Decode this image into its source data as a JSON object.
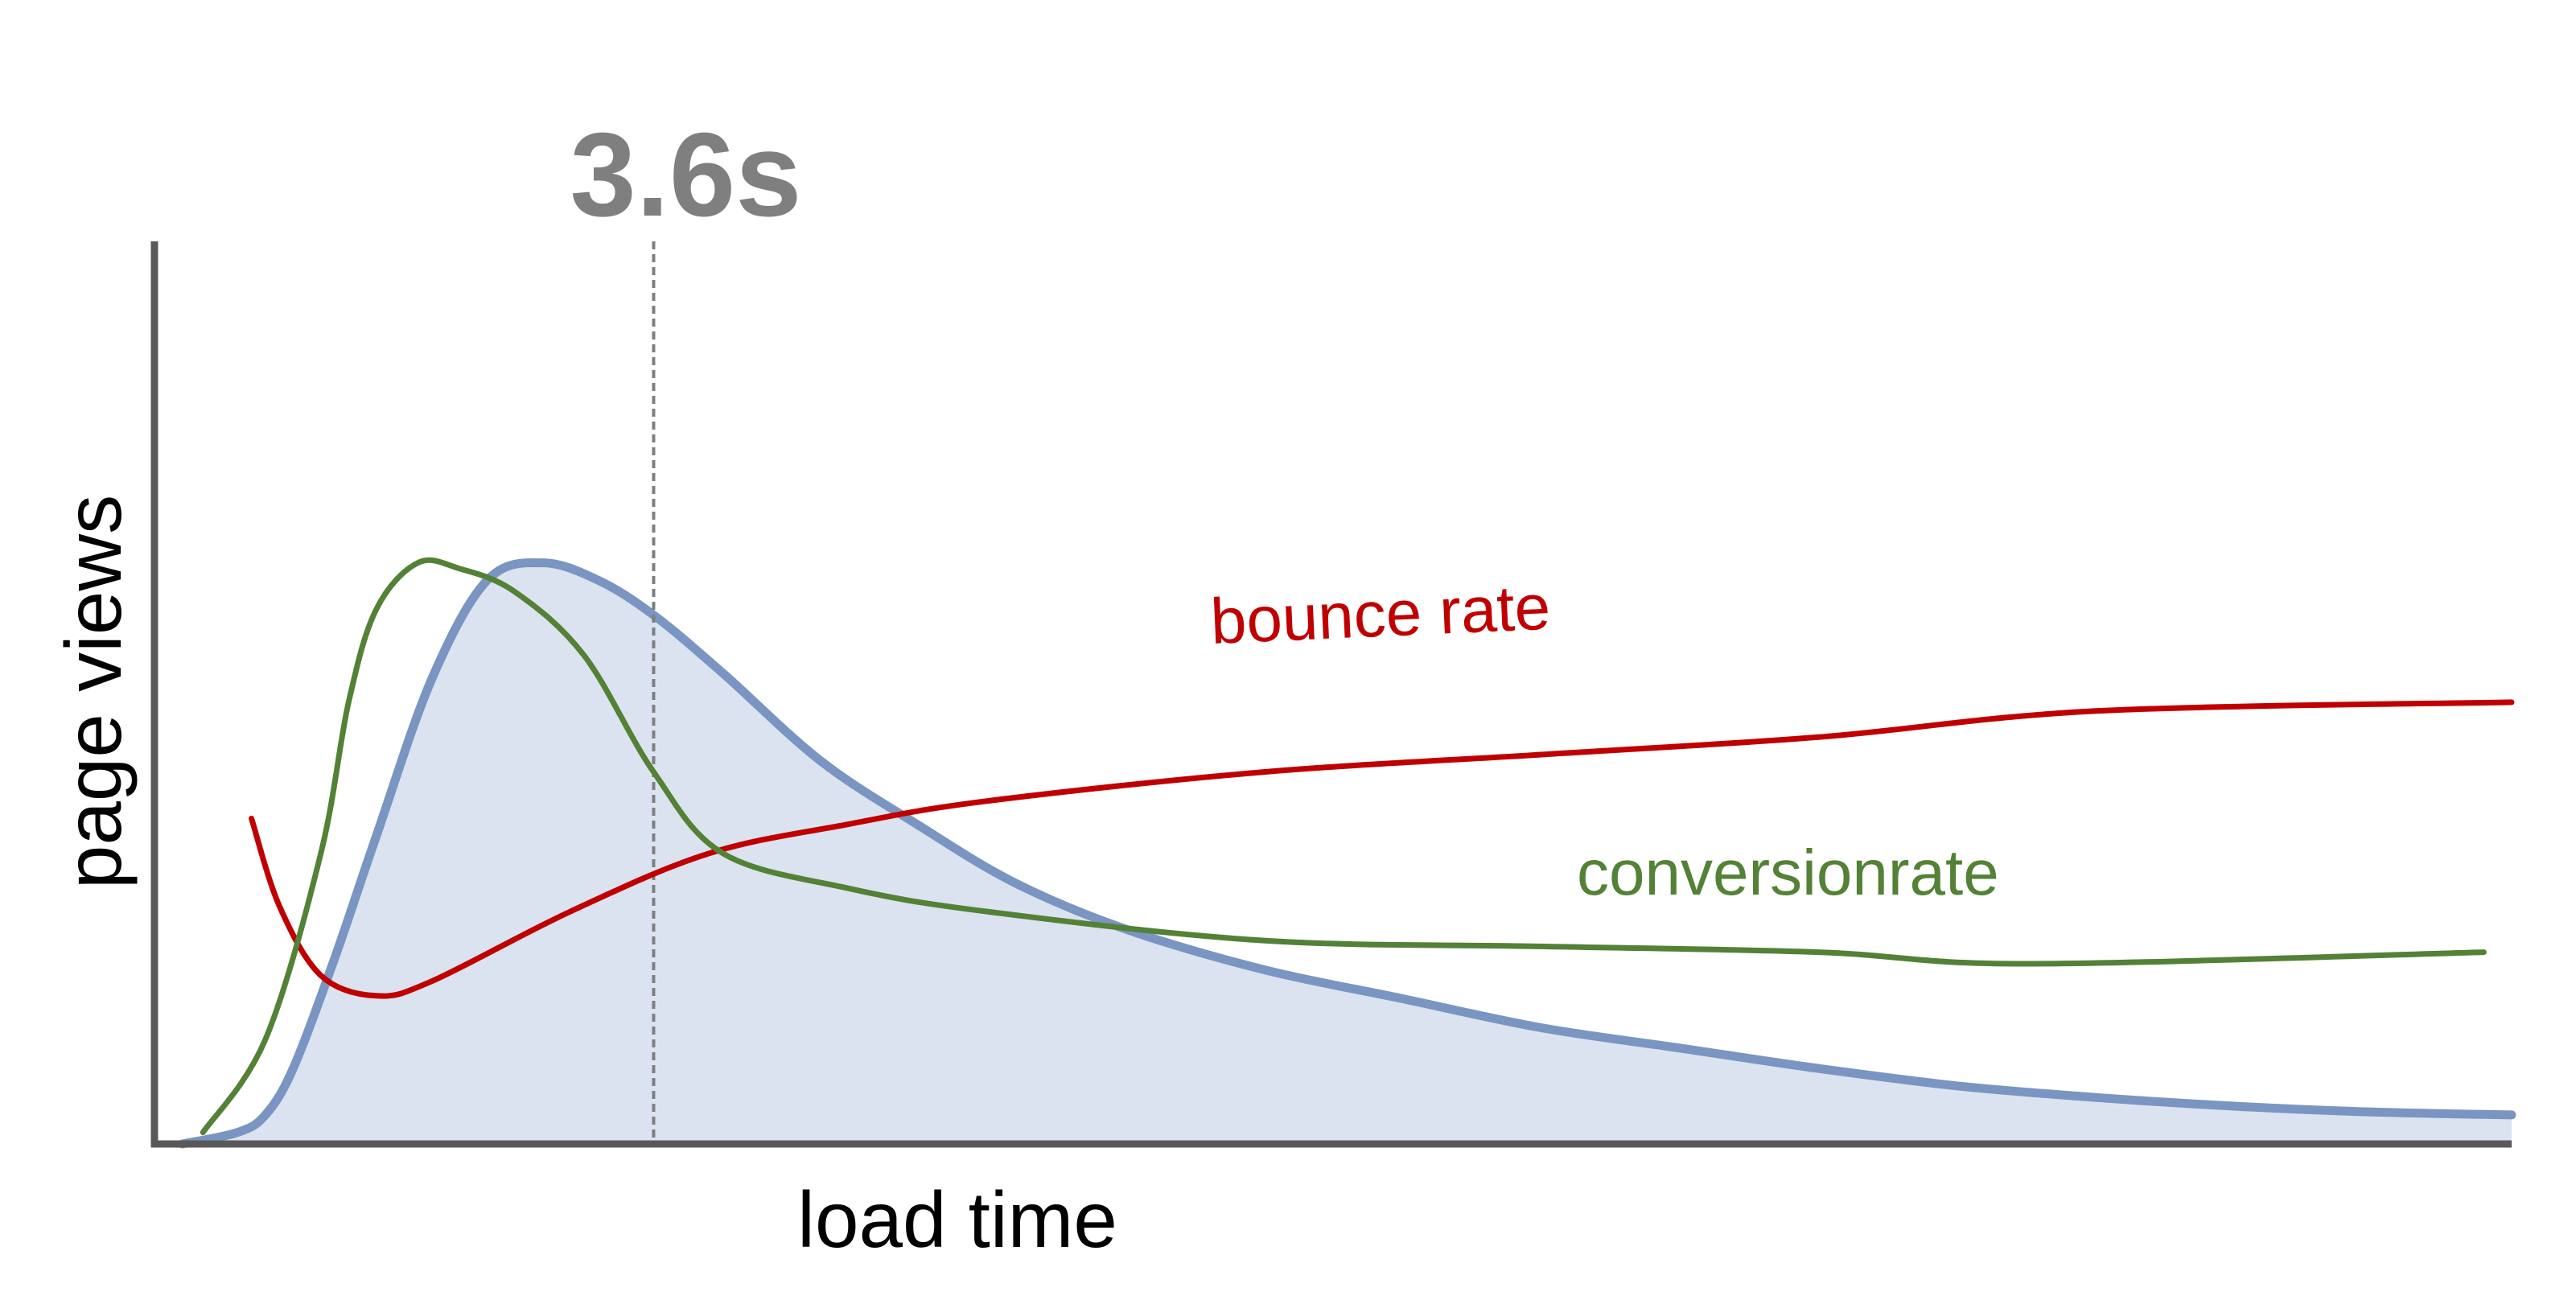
{
  "chart_data": {
    "type": "line",
    "xlabel": "load time",
    "ylabel": "page views",
    "marker": {
      "label": "3.6s",
      "x": 3.6
    },
    "colors": {
      "page_views_line": "#7b95c2",
      "page_views_fill": "#dbe3f1",
      "bounce_rate": "#c00000",
      "conversion_rate": "#538135",
      "axes": "#595959",
      "marker_line": "#7f7f7f",
      "marker_text": "#7f7f7f"
    },
    "series": [
      {
        "name": "",
        "role": "page views distribution",
        "style": "filled-area",
        "points": [
          [
            0.2,
            0.0
          ],
          [
            0.6,
            0.02
          ],
          [
            0.8,
            0.05
          ],
          [
            1.0,
            0.13
          ],
          [
            1.3,
            0.32
          ],
          [
            1.6,
            0.53
          ],
          [
            2.0,
            0.8
          ],
          [
            2.4,
            0.97
          ],
          [
            2.8,
            1.0
          ],
          [
            3.2,
            0.97
          ],
          [
            3.6,
            0.91
          ],
          [
            4.1,
            0.81
          ],
          [
            4.8,
            0.66
          ],
          [
            5.5,
            0.55
          ],
          [
            6.2,
            0.45
          ],
          [
            7.0,
            0.37
          ],
          [
            8.0,
            0.3
          ],
          [
            9.0,
            0.25
          ],
          [
            10.0,
            0.2
          ],
          [
            11.0,
            0.165
          ],
          [
            12.0,
            0.13
          ],
          [
            13.0,
            0.1
          ],
          [
            14.0,
            0.08
          ],
          [
            15.0,
            0.065
          ],
          [
            16.0,
            0.055
          ],
          [
            17.0,
            0.05
          ]
        ]
      },
      {
        "name": "bounce rate",
        "role": "bounce rate",
        "style": "line",
        "points": [
          [
            0.7,
            0.56
          ],
          [
            0.9,
            0.41
          ],
          [
            1.2,
            0.29
          ],
          [
            1.6,
            0.255
          ],
          [
            2.0,
            0.28
          ],
          [
            3.0,
            0.4
          ],
          [
            4.0,
            0.5
          ],
          [
            5.0,
            0.55
          ],
          [
            6.0,
            0.59
          ],
          [
            8.0,
            0.64
          ],
          [
            10.0,
            0.67
          ],
          [
            12.0,
            0.7
          ],
          [
            14.0,
            0.745
          ],
          [
            17.0,
            0.76
          ]
        ]
      },
      {
        "name": "conversionrate",
        "role": "conversion rate",
        "style": "line",
        "points": [
          [
            0.35,
            0.02
          ],
          [
            0.8,
            0.18
          ],
          [
            1.2,
            0.5
          ],
          [
            1.4,
            0.76
          ],
          [
            1.6,
            0.92
          ],
          [
            1.9,
            1.0
          ],
          [
            2.2,
            0.99
          ],
          [
            2.6,
            0.95
          ],
          [
            3.1,
            0.84
          ],
          [
            3.6,
            0.64
          ],
          [
            4.1,
            0.5
          ],
          [
            5.0,
            0.44
          ],
          [
            6.0,
            0.4
          ],
          [
            8.0,
            0.35
          ],
          [
            10.0,
            0.34
          ],
          [
            12.0,
            0.33
          ],
          [
            13.5,
            0.31
          ],
          [
            16.8,
            0.33
          ]
        ]
      }
    ],
    "xlim": [
      0,
      17
    ],
    "ylim": [
      0,
      1.47
    ],
    "grid": false,
    "legend": "inline labels"
  }
}
